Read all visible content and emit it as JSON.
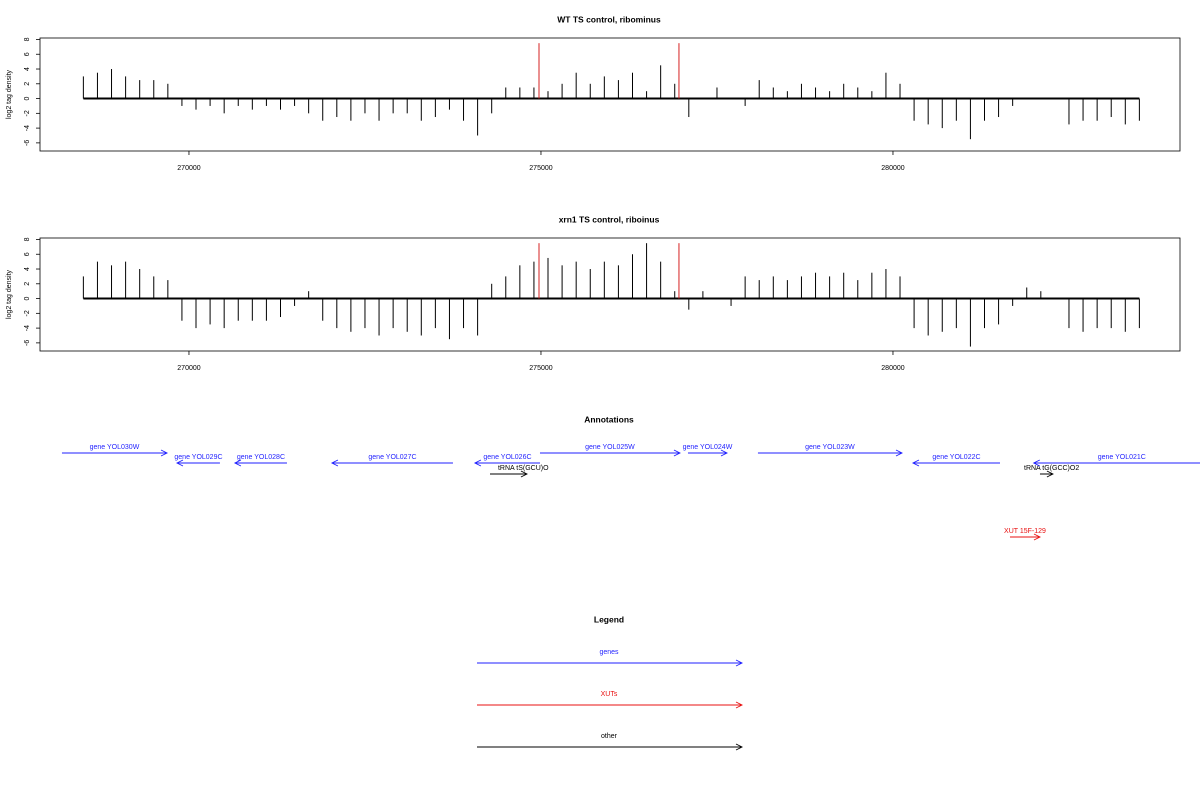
{
  "chart_data": [
    {
      "type": "bar",
      "title": "WT TS control, ribominus",
      "y_label": "log2 tag density",
      "x": [
        268500,
        268700,
        268900,
        269100,
        269300,
        269500,
        269700,
        269900,
        270100,
        270300,
        270500,
        270700,
        270900,
        271100,
        271300,
        271500,
        271700,
        271900,
        272100,
        272300,
        272500,
        272700,
        272900,
        273100,
        273300,
        273500,
        273700,
        273900,
        274100,
        274300,
        274500,
        274700,
        274900,
        275100,
        275300,
        275500,
        275700,
        275900,
        276100,
        276300,
        276500,
        276700,
        276900,
        277100,
        277300,
        277500,
        277700,
        277900,
        278100,
        278300,
        278500,
        278700,
        278900,
        279100,
        279300,
        279500,
        279700,
        279900,
        280100,
        280300,
        280500,
        280700,
        280900,
        281100,
        281300,
        281500,
        281700,
        281900,
        282100,
        282300,
        282500,
        282700,
        282900,
        283100,
        283300,
        283500
      ],
      "values": [
        3,
        3.5,
        4,
        3,
        2.5,
        2.5,
        2,
        -1,
        -1.5,
        -1,
        -2,
        -1,
        -1.5,
        -1,
        -1.5,
        -1,
        -2,
        -3,
        -2.5,
        -3,
        -2,
        -3,
        -2,
        -2,
        -3,
        -2.5,
        -1.5,
        -3,
        -5,
        -2,
        1.5,
        1.5,
        1.5,
        1,
        2,
        3.5,
        2,
        3,
        2.5,
        3.5,
        1,
        4.5,
        2,
        -2.5,
        0,
        1.5,
        0,
        -1,
        2.5,
        1.5,
        1,
        2,
        1.5,
        1,
        2,
        1.5,
        1,
        3.5,
        2,
        -3,
        -3.5,
        -4,
        -3,
        -5.5,
        -3,
        -2.5,
        -1,
        0,
        0,
        0,
        -3.5,
        -3,
        -3,
        -2.5,
        -3.5,
        -3
      ],
      "color": "#000000",
      "highlights": {
        "x": [
          274972,
          276960
        ],
        "values": [
          7.5,
          7.5
        ],
        "color": "#d62020"
      },
      "xlim": [
        267884,
        284077
      ],
      "ylim": [
        -7.1,
        8.2
      ],
      "xticks": [
        270000,
        275000,
        280000
      ],
      "yticks": [
        8,
        6,
        4,
        2,
        0,
        -2,
        -4,
        -6
      ]
    },
    {
      "type": "bar",
      "title": "xrn1 TS control, riboinus",
      "y_label": "log2 tag density",
      "x": [
        268500,
        268700,
        268900,
        269100,
        269300,
        269500,
        269700,
        269900,
        270100,
        270300,
        270500,
        270700,
        270900,
        271100,
        271300,
        271500,
        271700,
        271900,
        272100,
        272300,
        272500,
        272700,
        272900,
        273100,
        273300,
        273500,
        273700,
        273900,
        274100,
        274300,
        274500,
        274700,
        274900,
        275100,
        275300,
        275500,
        275700,
        275900,
        276100,
        276300,
        276500,
        276700,
        276900,
        277100,
        277300,
        277500,
        277700,
        277900,
        278100,
        278300,
        278500,
        278700,
        278900,
        279100,
        279300,
        279500,
        279700,
        279900,
        280100,
        280300,
        280500,
        280700,
        280900,
        281100,
        281300,
        281500,
        281700,
        281900,
        282100,
        282300,
        282500,
        282700,
        282900,
        283100,
        283300,
        283500
      ],
      "values": [
        3,
        5,
        4.5,
        5,
        4,
        3,
        2.5,
        -3,
        -4,
        -3.5,
        -4,
        -3,
        -3,
        -3,
        -2.5,
        -1,
        1,
        -3,
        -4,
        -4.5,
        -4,
        -5,
        -4,
        -4.5,
        -5,
        -4,
        -5.5,
        -4,
        -5,
        2,
        3,
        4.5,
        5,
        5.5,
        4.5,
        5,
        4,
        5,
        4.5,
        6,
        7.5,
        5,
        1,
        -1.5,
        1,
        0,
        -1,
        3,
        2.5,
        3,
        2.5,
        3,
        3.5,
        3,
        3.5,
        2.5,
        3.5,
        4,
        3,
        -4,
        -5,
        -4.5,
        -4,
        -6.5,
        -4,
        -3.5,
        -1,
        1.5,
        1,
        0,
        -4,
        -4.5,
        -4,
        -4,
        -4.5,
        -4
      ],
      "color": "#000000",
      "highlights": {
        "x": [
          274972,
          276960
        ],
        "values": [
          7.5,
          7.5
        ],
        "color": "#d62020"
      },
      "xlim": [
        267884,
        284077
      ],
      "ylim": [
        -7.1,
        8.2
      ],
      "xticks": [
        270000,
        275000,
        280000
      ],
      "yticks": [
        8,
        6,
        4,
        2,
        0,
        -2,
        -4,
        -6
      ]
    }
  ],
  "annotations": {
    "title": "Annotations",
    "features": [
      {
        "label": "gene YOL030W",
        "start": 268196,
        "end": 269688,
        "color": "#1f1fff"
      },
      {
        "label": "gene YOL029C",
        "start": 270440,
        "end": 269830,
        "color": "#1f1fff"
      },
      {
        "label": "gene YOL028C",
        "start": 271392,
        "end": 270653,
        "color": "#1f1fff"
      },
      {
        "label": "gene YOL027C",
        "start": 273750,
        "end": 272031,
        "color": "#1f1fff"
      },
      {
        "label": "gene YOL026C",
        "start": 274986,
        "end": 274062,
        "color": "#1f1fff"
      },
      {
        "label": "tRNA tS(GCU)O",
        "start": 274276,
        "end": 274801,
        "color": "#000000"
      },
      {
        "label": "gene YOL025W",
        "start": 274986,
        "end": 276974,
        "color": "#1f1fff"
      },
      {
        "label": "gene YOL024W",
        "start": 277088,
        "end": 277642,
        "color": "#1f1fff"
      },
      {
        "label": "gene YOL023W",
        "start": 278082,
        "end": 280128,
        "color": "#1f1fff"
      },
      {
        "label": "gene YOL022C",
        "start": 281520,
        "end": 280284,
        "color": "#1f1fff"
      },
      {
        "label": "tRNA tG(GCC)O2",
        "start": 282088,
        "end": 282272,
        "color": "#000000"
      },
      {
        "label": "gene YOL021C",
        "start": 284500,
        "end": 282000,
        "color": "#1f1fff"
      },
      {
        "label": "XUT 15F-129",
        "start": 281662,
        "end": 282088,
        "color": "#e81010"
      }
    ]
  },
  "legend": {
    "title": "Legend",
    "items": [
      {
        "label": "genes",
        "color": "#1f1fff"
      },
      {
        "label": "XUTs",
        "color": "#e81010"
      },
      {
        "label": "other",
        "color": "#000000"
      }
    ]
  }
}
